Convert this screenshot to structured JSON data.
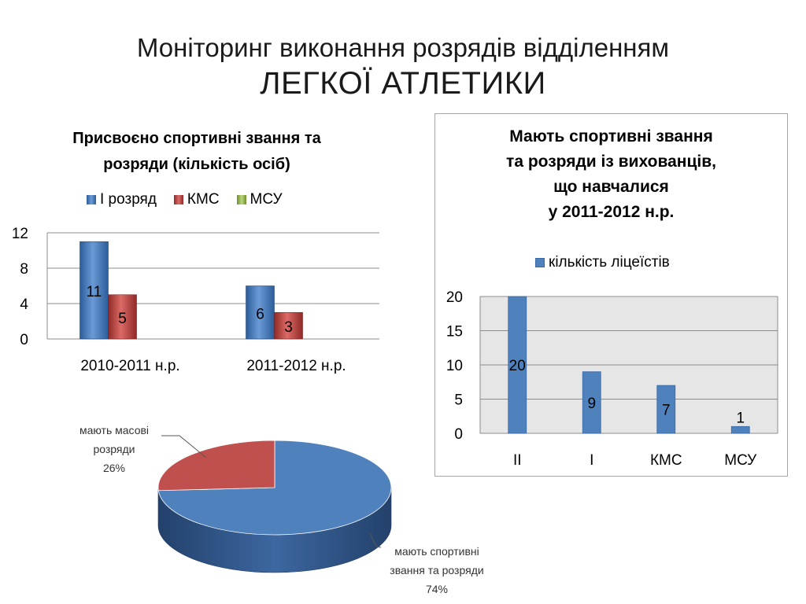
{
  "slide": {
    "title_line1": "Моніторинг виконання розрядів відділенням",
    "title_line2": "ЛЕГКОЇ АТЛЕТИКИ"
  },
  "chart_data": [
    {
      "type": "bar",
      "title_line1": "Присвоєно спортивні звання та",
      "title_line2": "розряди (кількість осіб)",
      "categories": [
        "2010-2011 н.р.",
        "2011-2012 н.р."
      ],
      "series": [
        {
          "name": "І розряд",
          "values": [
            11,
            6
          ],
          "color": "#4a7ebb"
        },
        {
          "name": "КМС",
          "values": [
            5,
            3
          ],
          "color": "#c0504d"
        },
        {
          "name": "МСУ",
          "values": [
            0,
            0
          ],
          "color": "#9bbb59"
        }
      ],
      "data_labels": [
        [
          "11",
          "6"
        ],
        [
          "5",
          "3"
        ],
        [
          null,
          null
        ]
      ],
      "ylim": [
        0,
        12
      ],
      "yticks": [
        "0",
        "4",
        "8",
        "12"
      ],
      "legend_position": "top",
      "grid": true
    },
    {
      "type": "bar",
      "title_lines": [
        "Мають спортивні звання",
        "та розряди із вихованців,",
        "що навчалися",
        "у 2011-2012 н.р."
      ],
      "categories": [
        "ІІ",
        "І",
        "КМС",
        "МСУ"
      ],
      "series": [
        {
          "name": "кількість ліцеїстів",
          "values": [
            20,
            9,
            7,
            1
          ],
          "color": "#4f81bd"
        }
      ],
      "data_labels": [
        "20",
        "9",
        "7",
        "1"
      ],
      "ylim": [
        0,
        20
      ],
      "yticks": [
        "0",
        "5",
        "10",
        "15",
        "20"
      ],
      "legend_position": "top",
      "grid": true,
      "plot_background": "#e6e6e6"
    },
    {
      "type": "pie",
      "slices": [
        {
          "label_line1": "мають спортивні",
          "label_line2": "звання та розряди",
          "percent_label": "74%",
          "value": 74,
          "color": "#4f81bd"
        },
        {
          "label_line1": "мають масові",
          "label_line2": "розряди",
          "percent_label": "26%",
          "value": 26,
          "color": "#c0504d"
        }
      ]
    }
  ]
}
